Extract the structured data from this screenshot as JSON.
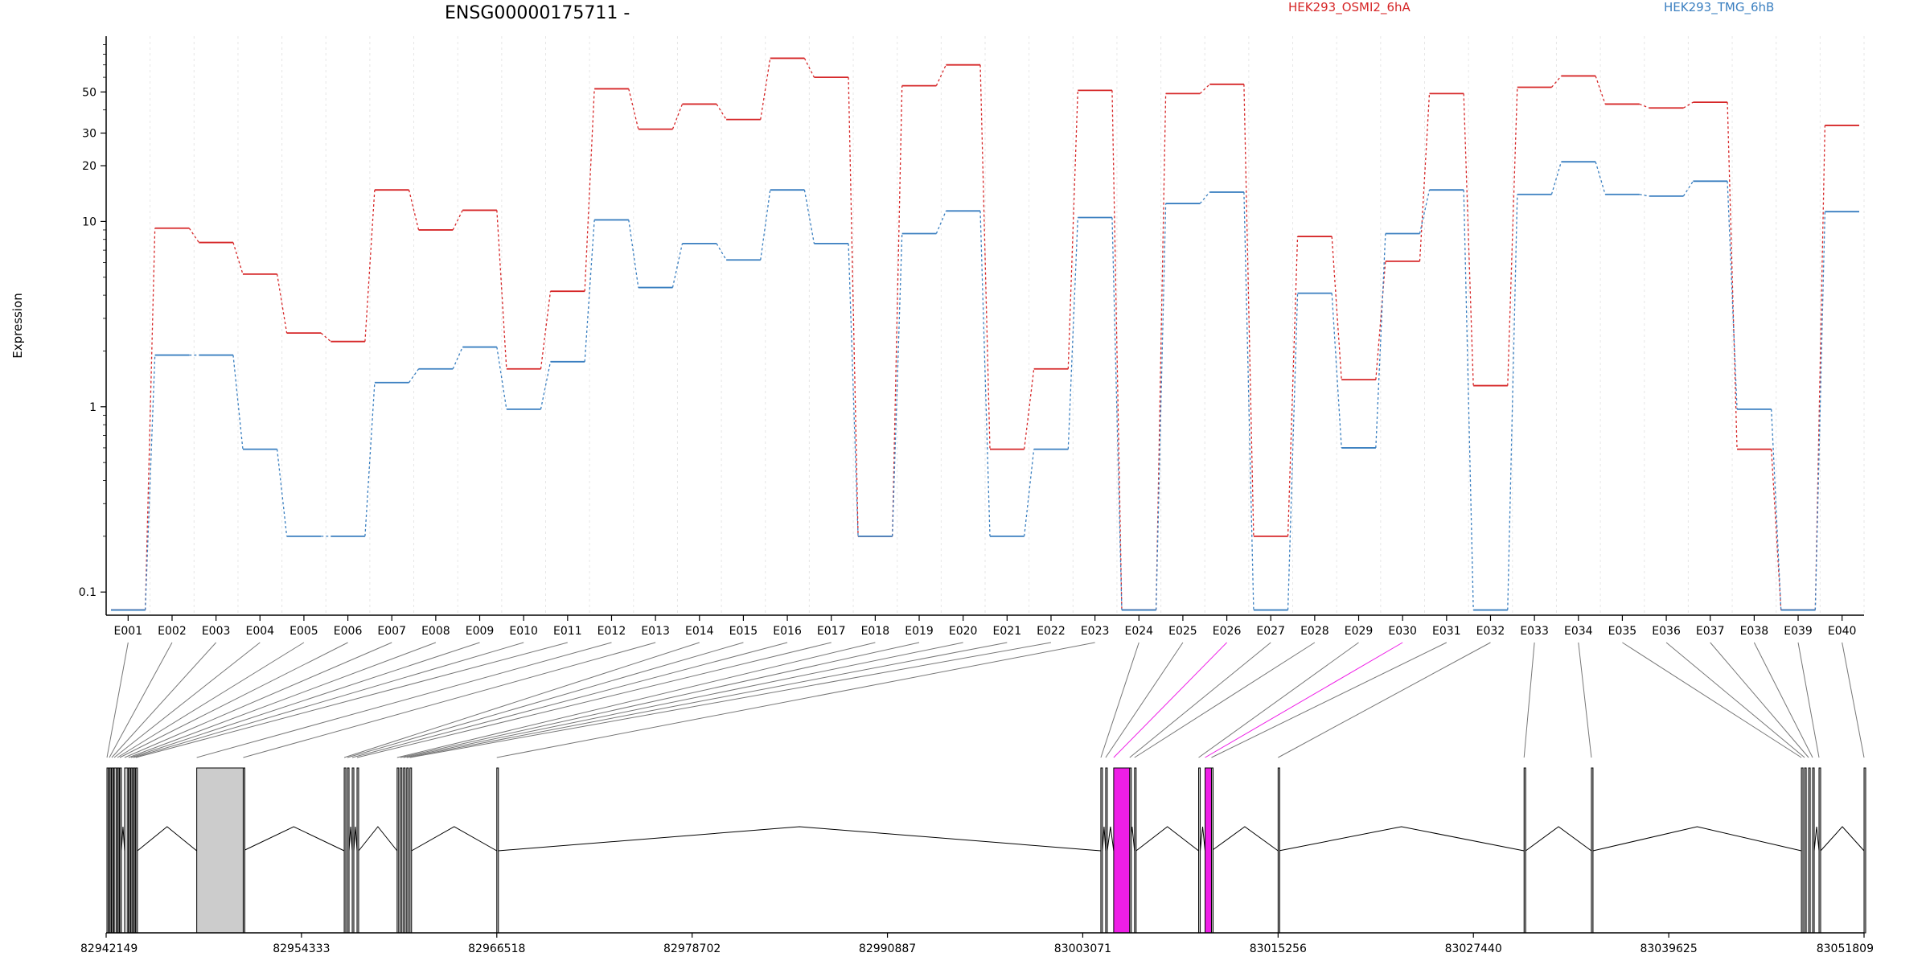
{
  "colors": {
    "series_a": "#d62728",
    "series_b": "#3a7fc0",
    "highlight": "#ee1ee6",
    "exon_fill": "#cccccc",
    "grid": "#e6e6e6"
  },
  "chart_data": {
    "type": "line",
    "title": "ENSG00000175711 -",
    "ylabel": "Expression",
    "yscale": "log",
    "ylim": [
      0.075,
      100
    ],
    "yticks": [
      0.1,
      1,
      10,
      20,
      30,
      50
    ],
    "ytick_labels": [
      "0.1",
      "1",
      "10",
      "20",
      "30",
      "50"
    ],
    "grid": true,
    "legend_position": "top",
    "categories": [
      "E001",
      "E002",
      "E003",
      "E004",
      "E005",
      "E006",
      "E007",
      "E008",
      "E009",
      "E010",
      "E011",
      "E012",
      "E013",
      "E014",
      "E015",
      "E016",
      "E017",
      "E018",
      "E019",
      "E020",
      "E021",
      "E022",
      "E023",
      "E024",
      "E025",
      "E026",
      "E027",
      "E028",
      "E029",
      "E030",
      "E031",
      "E032",
      "E033",
      "E034",
      "E035",
      "E036",
      "E037",
      "E038",
      "E039",
      "E040"
    ],
    "series": [
      {
        "name": "HEK293_OSMI2_6hA",
        "values": [
          0.08,
          9.2,
          7.7,
          5.2,
          2.5,
          2.25,
          14.8,
          9.0,
          11.5,
          1.6,
          4.2,
          52,
          31.5,
          43,
          35.5,
          76,
          60,
          0.2,
          54,
          70,
          0.59,
          1.6,
          51,
          0.08,
          49,
          55,
          0.2,
          8.3,
          1.4,
          6.1,
          49,
          1.3,
          53,
          61,
          43,
          41,
          44,
          0.59,
          0.08,
          33
        ]
      },
      {
        "name": "HEK293_TMG_6hB",
        "values": [
          0.08,
          1.9,
          1.9,
          0.59,
          0.2,
          0.2,
          1.35,
          1.6,
          2.1,
          0.97,
          1.75,
          10.2,
          4.4,
          7.6,
          6.2,
          14.8,
          7.6,
          0.2,
          8.6,
          11.4,
          0.2,
          0.59,
          10.5,
          0.08,
          12.5,
          14.4,
          0.08,
          4.1,
          0.6,
          8.6,
          14.8,
          0.08,
          14,
          21,
          14,
          13.7,
          16.5,
          0.97,
          0.08,
          11.3
        ]
      }
    ],
    "genome_axis": {
      "ticks": [
        82942149,
        82954333,
        82966518,
        82978702,
        82990887,
        83003071,
        83015256,
        83027440,
        83039625,
        83051809
      ],
      "tick_labels": [
        "82942149",
        "82954333",
        "82966518",
        "82978702",
        "82990887",
        "83003071",
        "83015256",
        "83027440",
        "83039625",
        "83051809"
      ]
    },
    "exon_positions": [
      82942200,
      82942350,
      82942500,
      82942650,
      82942850,
      82943000,
      82943300,
      82943550,
      82943700,
      82943850,
      82944000,
      82947800,
      82950700,
      82957000,
      82957200,
      82957500,
      82957800,
      82960300,
      82960500,
      82960700,
      82960900,
      82961100,
      82966518,
      83004200,
      83004500,
      83005000,
      83006000,
      83006300,
      83010300,
      83010700,
      83011100,
      83015256,
      83030600,
      83034800,
      83047900,
      83048100,
      83048350,
      83048600,
      83049000,
      83051809
    ],
    "exon_ends": [
      82942300,
      82942450,
      82942600,
      82942800,
      82942950,
      82943100,
      82943500,
      82943650,
      82943800,
      82943950,
      82944100,
      82950700,
      82950700,
      82957100,
      82957300,
      82957600,
      82957900,
      82960400,
      82960600,
      82960800,
      82961000,
      82961200,
      82966600,
      83004300,
      83004600,
      83006000,
      83006000,
      83006400,
      83010400,
      83011100,
      83011100,
      83015300,
      83030700,
      83034900,
      83048000,
      83048200,
      83048450,
      83048700,
      83049100,
      83051850
    ],
    "highlighted_exons": [
      "E026",
      "E030"
    ]
  }
}
